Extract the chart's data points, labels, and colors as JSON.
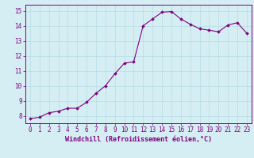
{
  "x": [
    0,
    1,
    2,
    3,
    4,
    5,
    6,
    7,
    8,
    9,
    10,
    11,
    12,
    13,
    14,
    15,
    16,
    17,
    18,
    19,
    20,
    21,
    22,
    23
  ],
  "y": [
    7.8,
    7.9,
    8.2,
    8.3,
    8.5,
    8.5,
    8.9,
    9.5,
    10.0,
    10.8,
    11.5,
    11.6,
    14.0,
    14.45,
    14.9,
    14.95,
    14.45,
    14.1,
    13.8,
    13.7,
    13.6,
    14.05,
    14.2,
    13.5
  ],
  "line_color": "#800080",
  "marker": "D",
  "marker_size": 1.8,
  "linewidth": 0.8,
  "xlabel": "Windchill (Refroidissement éolien,°C)",
  "xtick_labels": [
    "0",
    "1",
    "2",
    "3",
    "4",
    "5",
    "6",
    "7",
    "8",
    "9",
    "10",
    "11",
    "12",
    "13",
    "14",
    "15",
    "16",
    "17",
    "18",
    "19",
    "20",
    "21",
    "22",
    "23"
  ],
  "ytick_values": [
    8,
    9,
    10,
    11,
    12,
    13,
    14,
    15
  ],
  "ylim": [
    7.5,
    15.4
  ],
  "xlim": [
    -0.5,
    23.5
  ],
  "background_color": "#d5eef3",
  "grid_color": "#b8dce4",
  "tick_color": "#800080",
  "label_color": "#800080",
  "tick_fontsize": 5.5,
  "xlabel_fontsize": 6.0
}
